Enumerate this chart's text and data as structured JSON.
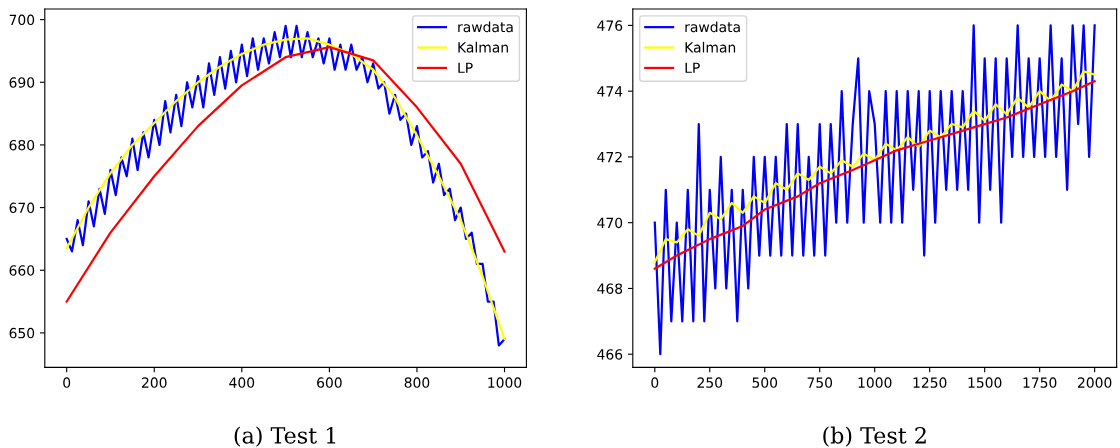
{
  "chart_data": [
    {
      "type": "line",
      "annotations": [
        "(a) Test 1"
      ],
      "legend": "top right",
      "grid": false,
      "xlim": [
        -50,
        1050
      ],
      "ylim": [
        644.5,
        701.7
      ],
      "xticks": [
        0,
        200,
        400,
        600,
        800,
        1000
      ],
      "yticks": [
        650,
        660,
        670,
        680,
        690,
        700
      ],
      "series": [
        {
          "name": "rawdata",
          "color": "#0000ff",
          "x": [
            0,
            12,
            25,
            37,
            50,
            62,
            75,
            87,
            100,
            112,
            125,
            137,
            150,
            162,
            175,
            187,
            200,
            212,
            225,
            237,
            250,
            262,
            275,
            287,
            300,
            312,
            325,
            337,
            350,
            362,
            375,
            387,
            400,
            412,
            425,
            437,
            450,
            462,
            475,
            487,
            500,
            512,
            525,
            537,
            550,
            562,
            575,
            587,
            600,
            612,
            625,
            637,
            650,
            662,
            675,
            687,
            700,
            712,
            725,
            737,
            750,
            762,
            775,
            787,
            800,
            812,
            825,
            837,
            850,
            862,
            875,
            887,
            900,
            912,
            925,
            937,
            950,
            962,
            975,
            987,
            1000
          ],
          "values": [
            665,
            663,
            668,
            664,
            671,
            667,
            673,
            669,
            676,
            672,
            678,
            675,
            681,
            676,
            682,
            678,
            684,
            680,
            687,
            682,
            688,
            683,
            690,
            686,
            691,
            686,
            693,
            688,
            694,
            689,
            695,
            690,
            696,
            691,
            697,
            692,
            697,
            693,
            698,
            694,
            699,
            694,
            699,
            694,
            698,
            694,
            697,
            693,
            697,
            692,
            696,
            692,
            696,
            692,
            694,
            690,
            693,
            689,
            690,
            685,
            688,
            684,
            685,
            680,
            683,
            678,
            679,
            674,
            677,
            672,
            673,
            668,
            670,
            665,
            666,
            661,
            661,
            655,
            655,
            648,
            649
          ]
        },
        {
          "name": "Kalman",
          "color": "#ffff00",
          "x": [
            0,
            50,
            100,
            150,
            200,
            250,
            300,
            350,
            400,
            450,
            500,
            550,
            600,
            650,
            700,
            750,
            800,
            850,
            900,
            950,
            1000
          ],
          "values": [
            663.5,
            670,
            675.5,
            680,
            683.5,
            687,
            690,
            692.5,
            694.5,
            696,
            696.8,
            697,
            696,
            694.5,
            692,
            687.5,
            681.5,
            675,
            668,
            659,
            649
          ]
        },
        {
          "name": "LP",
          "color": "#ff0000",
          "x": [
            0,
            100,
            200,
            300,
            400,
            500,
            600,
            700,
            800,
            900,
            1000
          ],
          "values": [
            655,
            666,
            675,
            683,
            689.5,
            694,
            695.6,
            693.5,
            686,
            677,
            663
          ]
        }
      ]
    },
    {
      "type": "line",
      "annotations": [
        "(b) Test 2"
      ],
      "legend": "top left",
      "grid": false,
      "xlim": [
        -100,
        2100
      ],
      "ylim": [
        465.6,
        476.5
      ],
      "xticks": [
        0,
        250,
        500,
        750,
        1000,
        1250,
        1500,
        1750,
        2000
      ],
      "yticks": [
        466,
        468,
        470,
        472,
        474,
        476
      ],
      "series": [
        {
          "name": "rawdata",
          "color": "#0000ff",
          "x": [
            0,
            25,
            50,
            75,
            100,
            125,
            150,
            175,
            200,
            225,
            250,
            275,
            300,
            325,
            350,
            375,
            400,
            425,
            450,
            475,
            500,
            525,
            550,
            575,
            600,
            625,
            650,
            675,
            700,
            725,
            750,
            775,
            800,
            825,
            850,
            875,
            900,
            925,
            950,
            975,
            1000,
            1025,
            1050,
            1075,
            1100,
            1125,
            1150,
            1175,
            1200,
            1225,
            1250,
            1275,
            1300,
            1325,
            1350,
            1375,
            1400,
            1425,
            1450,
            1475,
            1500,
            1525,
            1550,
            1575,
            1600,
            1625,
            1650,
            1675,
            1700,
            1725,
            1750,
            1775,
            1800,
            1825,
            1850,
            1875,
            1900,
            1925,
            1950,
            1975,
            2000
          ],
          "values": [
            470,
            466,
            471,
            467,
            470,
            467,
            471,
            467,
            473,
            467,
            471,
            468,
            472,
            468,
            471,
            467,
            471,
            468,
            472,
            469,
            472,
            469,
            472,
            469,
            473,
            469,
            473,
            469,
            472,
            469,
            473,
            469,
            473,
            470,
            474,
            470,
            473,
            475,
            470,
            474,
            473,
            470,
            474,
            470,
            474,
            470,
            474,
            471,
            474,
            469,
            474,
            470,
            474,
            471,
            474,
            471,
            474,
            471,
            476,
            470,
            475,
            471,
            475,
            470,
            475,
            472,
            476,
            472,
            475,
            472,
            475,
            472,
            476,
            472,
            475,
            471,
            476,
            473,
            476,
            472,
            476
          ]
        },
        {
          "name": "Kalman",
          "color": "#ffff00",
          "x": [
            0,
            50,
            100,
            150,
            200,
            250,
            300,
            350,
            400,
            450,
            500,
            550,
            600,
            650,
            700,
            750,
            800,
            850,
            900,
            950,
            1000,
            1050,
            1100,
            1150,
            1200,
            1250,
            1300,
            1350,
            1400,
            1450,
            1500,
            1550,
            1600,
            1650,
            1700,
            1750,
            1800,
            1850,
            1900,
            1950,
            2000
          ],
          "values": [
            468.8,
            469.5,
            469.4,
            469.8,
            469.6,
            470.3,
            470.1,
            470.6,
            470.3,
            470.8,
            470.6,
            471.2,
            471.0,
            471.5,
            471.3,
            471.7,
            471.5,
            471.9,
            471.7,
            472.1,
            471.9,
            472.4,
            472.2,
            472.6,
            472.3,
            472.8,
            472.6,
            473.0,
            472.9,
            473.4,
            473.1,
            473.6,
            473.3,
            473.8,
            473.5,
            474.0,
            473.7,
            474.2,
            474.0,
            474.6,
            474.5
          ]
        },
        {
          "name": "LP",
          "color": "#ff0000",
          "x": [
            0,
            100,
            250,
            400,
            500,
            650,
            750,
            900,
            1000,
            1100,
            1200,
            1300,
            1450,
            1600,
            1750,
            1900,
            2000
          ],
          "values": [
            468.6,
            469,
            469.5,
            469.9,
            470.4,
            470.8,
            471.2,
            471.6,
            471.9,
            472.2,
            472.4,
            472.6,
            472.9,
            473.2,
            473.6,
            474.0,
            474.3
          ]
        }
      ]
    }
  ]
}
